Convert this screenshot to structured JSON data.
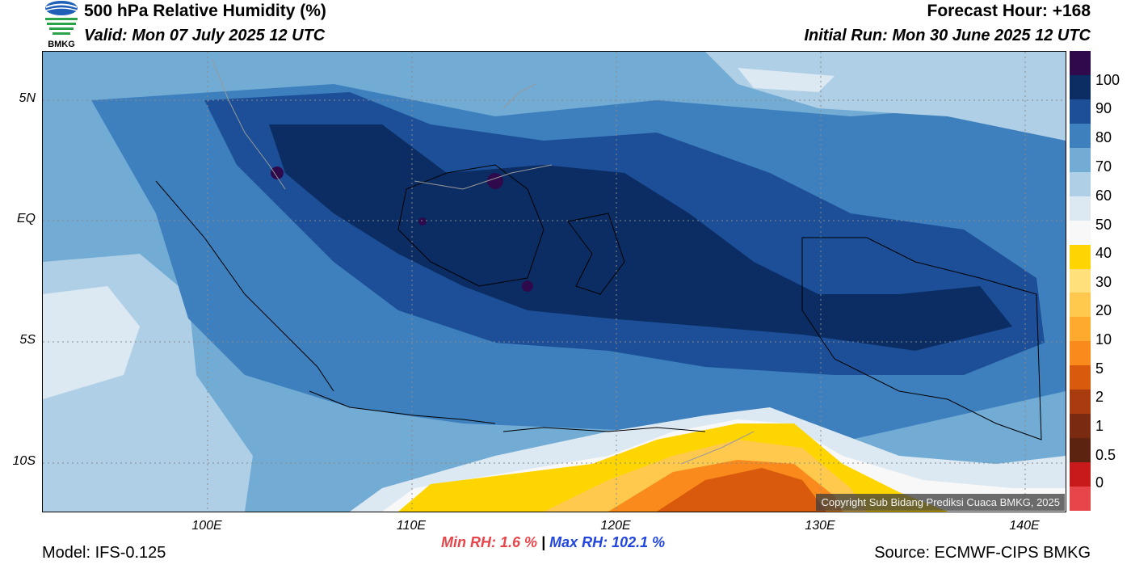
{
  "header": {
    "title": "500 hPa Relative Humidity (%)",
    "valid": "Valid: Mon 07 July 2025 12 UTC",
    "forecast_hour": "Forecast Hour: +168",
    "initial_run": "Initial Run: Mon 30 June 2025 12 UTC"
  },
  "logo": {
    "text": "BMKG"
  },
  "map": {
    "lat_labels": [
      "5N",
      "EQ",
      "5S",
      "10S"
    ],
    "lon_labels": [
      "100E",
      "110E",
      "120E",
      "130E",
      "140E"
    ],
    "copyright": "Copyright Sub Bidang Prediksi Cuaca BMKG, 2025"
  },
  "colorbar": {
    "labels": [
      "100",
      "90",
      "80",
      "70",
      "60",
      "50",
      "40",
      "30",
      "20",
      "10",
      "5",
      "2",
      "1",
      "0.5",
      "0"
    ],
    "colors": [
      "#2e0a4d",
      "#0b2d63",
      "#1c4f97",
      "#3d80bd",
      "#72abd4",
      "#aecfe6",
      "#dce9f2",
      "#f8f8f8",
      "#ffd500",
      "#ffe07a",
      "#ffc94d",
      "#fdaa2f",
      "#f98a1b",
      "#d95a0d",
      "#a93c0f",
      "#7a2a10",
      "#5c2410",
      "#c81a1a",
      "#e8454a"
    ]
  },
  "stats": {
    "min_label": "Min RH:",
    "min_value": "1.6 %",
    "separator": "|",
    "max_label": "Max RH:",
    "max_value": "102.1 %"
  },
  "footer": {
    "model": "Model: IFS-0.125",
    "source": "Source: ECMWF-CIPS BMKG"
  }
}
